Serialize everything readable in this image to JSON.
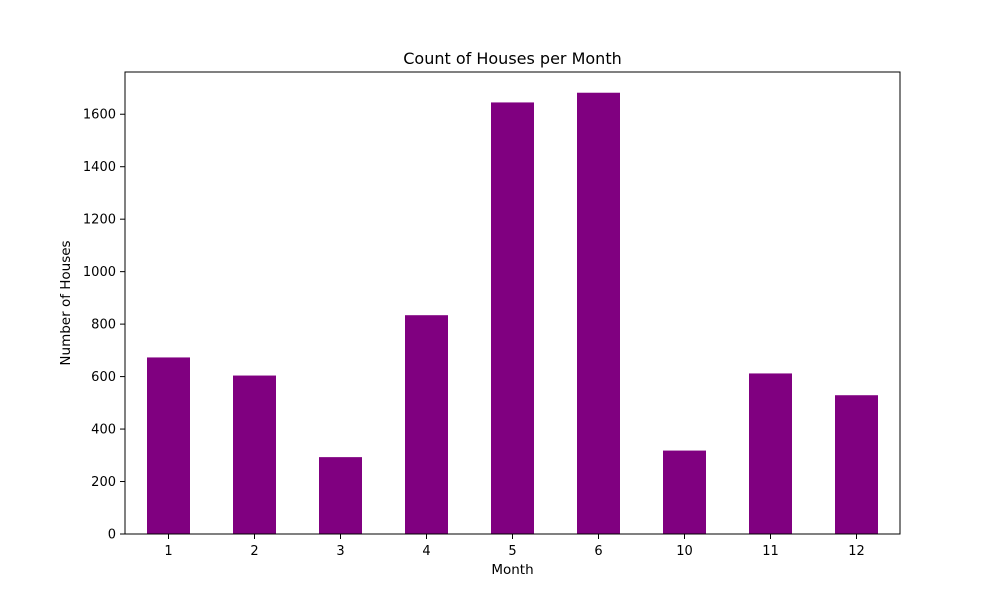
{
  "chart_data": {
    "type": "bar",
    "title": "Count of Houses per Month",
    "xlabel": "Month",
    "ylabel": "Number of Houses",
    "categories": [
      "1",
      "2",
      "3",
      "4",
      "5",
      "6",
      "10",
      "11",
      "12"
    ],
    "values": [
      673,
      604,
      293,
      834,
      1645,
      1682,
      318,
      612,
      529
    ],
    "ylim": [
      0,
      1761
    ],
    "yticks": [
      0,
      200,
      400,
      600,
      800,
      1000,
      1200,
      1400,
      1600
    ],
    "bar_color": "#800080",
    "grid": false,
    "legend": "none"
  }
}
